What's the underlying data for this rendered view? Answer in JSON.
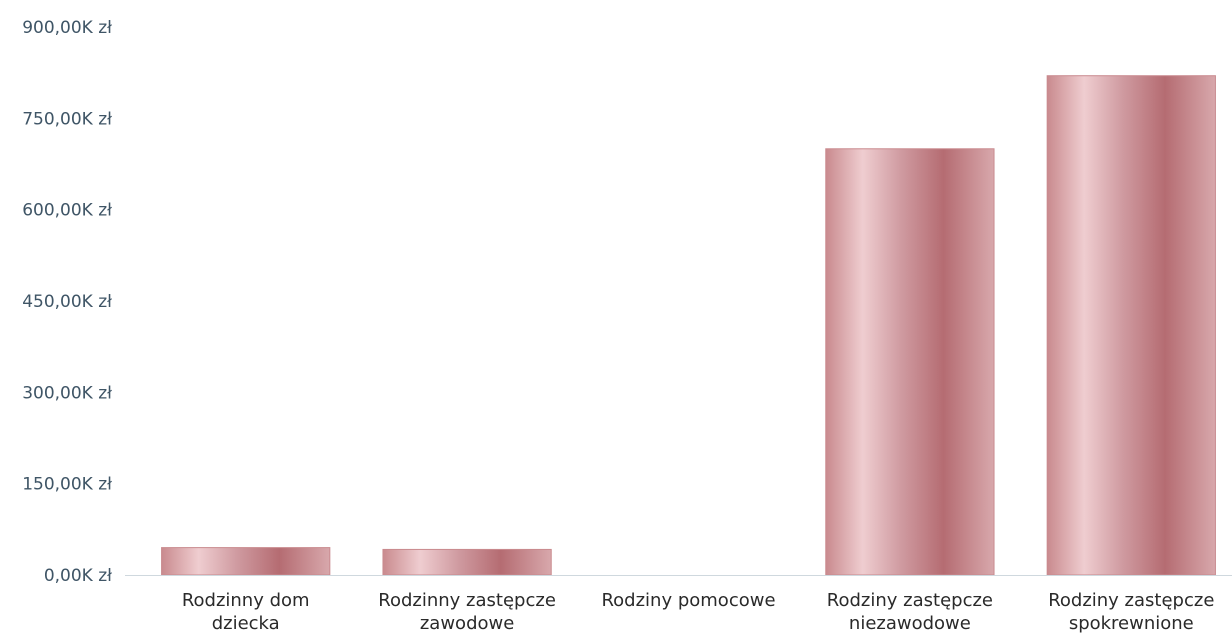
{
  "chart_data": {
    "type": "bar",
    "categories": [
      [
        "Rodzinny dom",
        "dziecka"
      ],
      [
        "Rodzinny zastępcze",
        "zawodowe"
      ],
      [
        "Rodziny pomocowe"
      ],
      [
        "Rodziny zastępcze",
        "niezawodowe"
      ],
      [
        "Rodziny zastępcze",
        "spokrewnione"
      ]
    ],
    "values": [
      45000,
      42000,
      0,
      700000,
      820000
    ],
    "ylim": [
      0,
      900000
    ],
    "yticks": [
      0,
      150000,
      300000,
      450000,
      600000,
      750000,
      900000
    ],
    "ytick_labels": [
      "0,00K zł",
      "150,00K zł",
      "300,00K zł",
      "450,00K zł",
      "600,00K zł",
      "750,00K zł",
      "900,00K zł"
    ],
    "grid": false,
    "legend": "none",
    "colors": {
      "bar_edge": "#c98a8e",
      "bar_mid": "#f0cfd2",
      "bar_dark": "#b56c72",
      "axis": "#cfd8de",
      "tick_text": "#3f5566",
      "category_text": "#2a2a2a"
    }
  }
}
